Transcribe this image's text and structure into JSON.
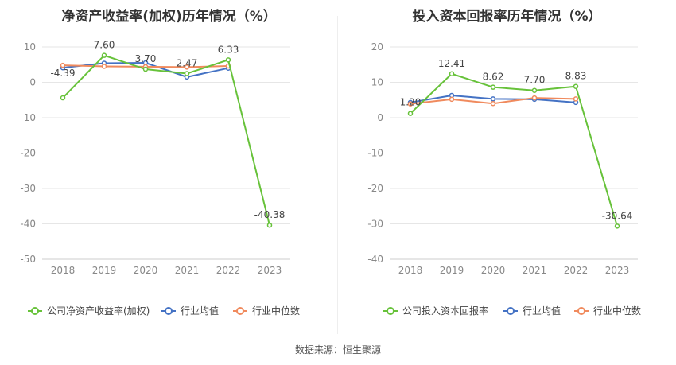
{
  "source": "数据来源：恒生聚源",
  "chart_data": [
    {
      "type": "line",
      "title": "净资产收益率(加权)历年情况（%）",
      "categories": [
        "2018",
        "2019",
        "2020",
        "2021",
        "2022",
        "2023"
      ],
      "ylim": [
        -50,
        10
      ],
      "yticks": [
        10,
        0,
        -10,
        -20,
        -30,
        -40,
        -50
      ],
      "grid": true,
      "legend_position": "bottom",
      "series": [
        {
          "name": "公司净资产收益率(加权)",
          "color": "#67c23a",
          "values": [
            -4.39,
            7.6,
            3.7,
            2.47,
            6.33,
            -40.38
          ],
          "labels": [
            "-4.39",
            "7.60",
            "3.70",
            "2.47",
            "6.33",
            "-40.38"
          ]
        },
        {
          "name": "行业均值",
          "color": "#4472c4",
          "values": [
            4.1,
            5.4,
            5.5,
            1.5,
            4.0,
            null
          ]
        },
        {
          "name": "行业中位数",
          "color": "#f08a5d",
          "values": [
            4.8,
            4.5,
            4.4,
            4.3,
            4.6,
            null
          ]
        }
      ]
    },
    {
      "type": "line",
      "title": "投入资本回报率历年情况（%）",
      "categories": [
        "2018",
        "2019",
        "2020",
        "2021",
        "2022",
        "2023"
      ],
      "ylim": [
        -40,
        20
      ],
      "yticks": [
        20,
        10,
        0,
        -10,
        -20,
        -30,
        -40
      ],
      "grid": true,
      "legend_position": "bottom",
      "series": [
        {
          "name": "公司投入资本回报率",
          "color": "#67c23a",
          "values": [
            1.2,
            12.41,
            8.62,
            7.7,
            8.83,
            -30.64
          ],
          "labels": [
            "1.20",
            "12.41",
            "8.62",
            "7.70",
            "8.83",
            "-30.64"
          ]
        },
        {
          "name": "行业均值",
          "color": "#4472c4",
          "values": [
            4.3,
            6.3,
            5.3,
            5.2,
            4.3,
            null
          ]
        },
        {
          "name": "行业中位数",
          "color": "#f08a5d",
          "values": [
            3.9,
            5.2,
            4.0,
            5.6,
            5.3,
            null
          ]
        }
      ]
    }
  ]
}
